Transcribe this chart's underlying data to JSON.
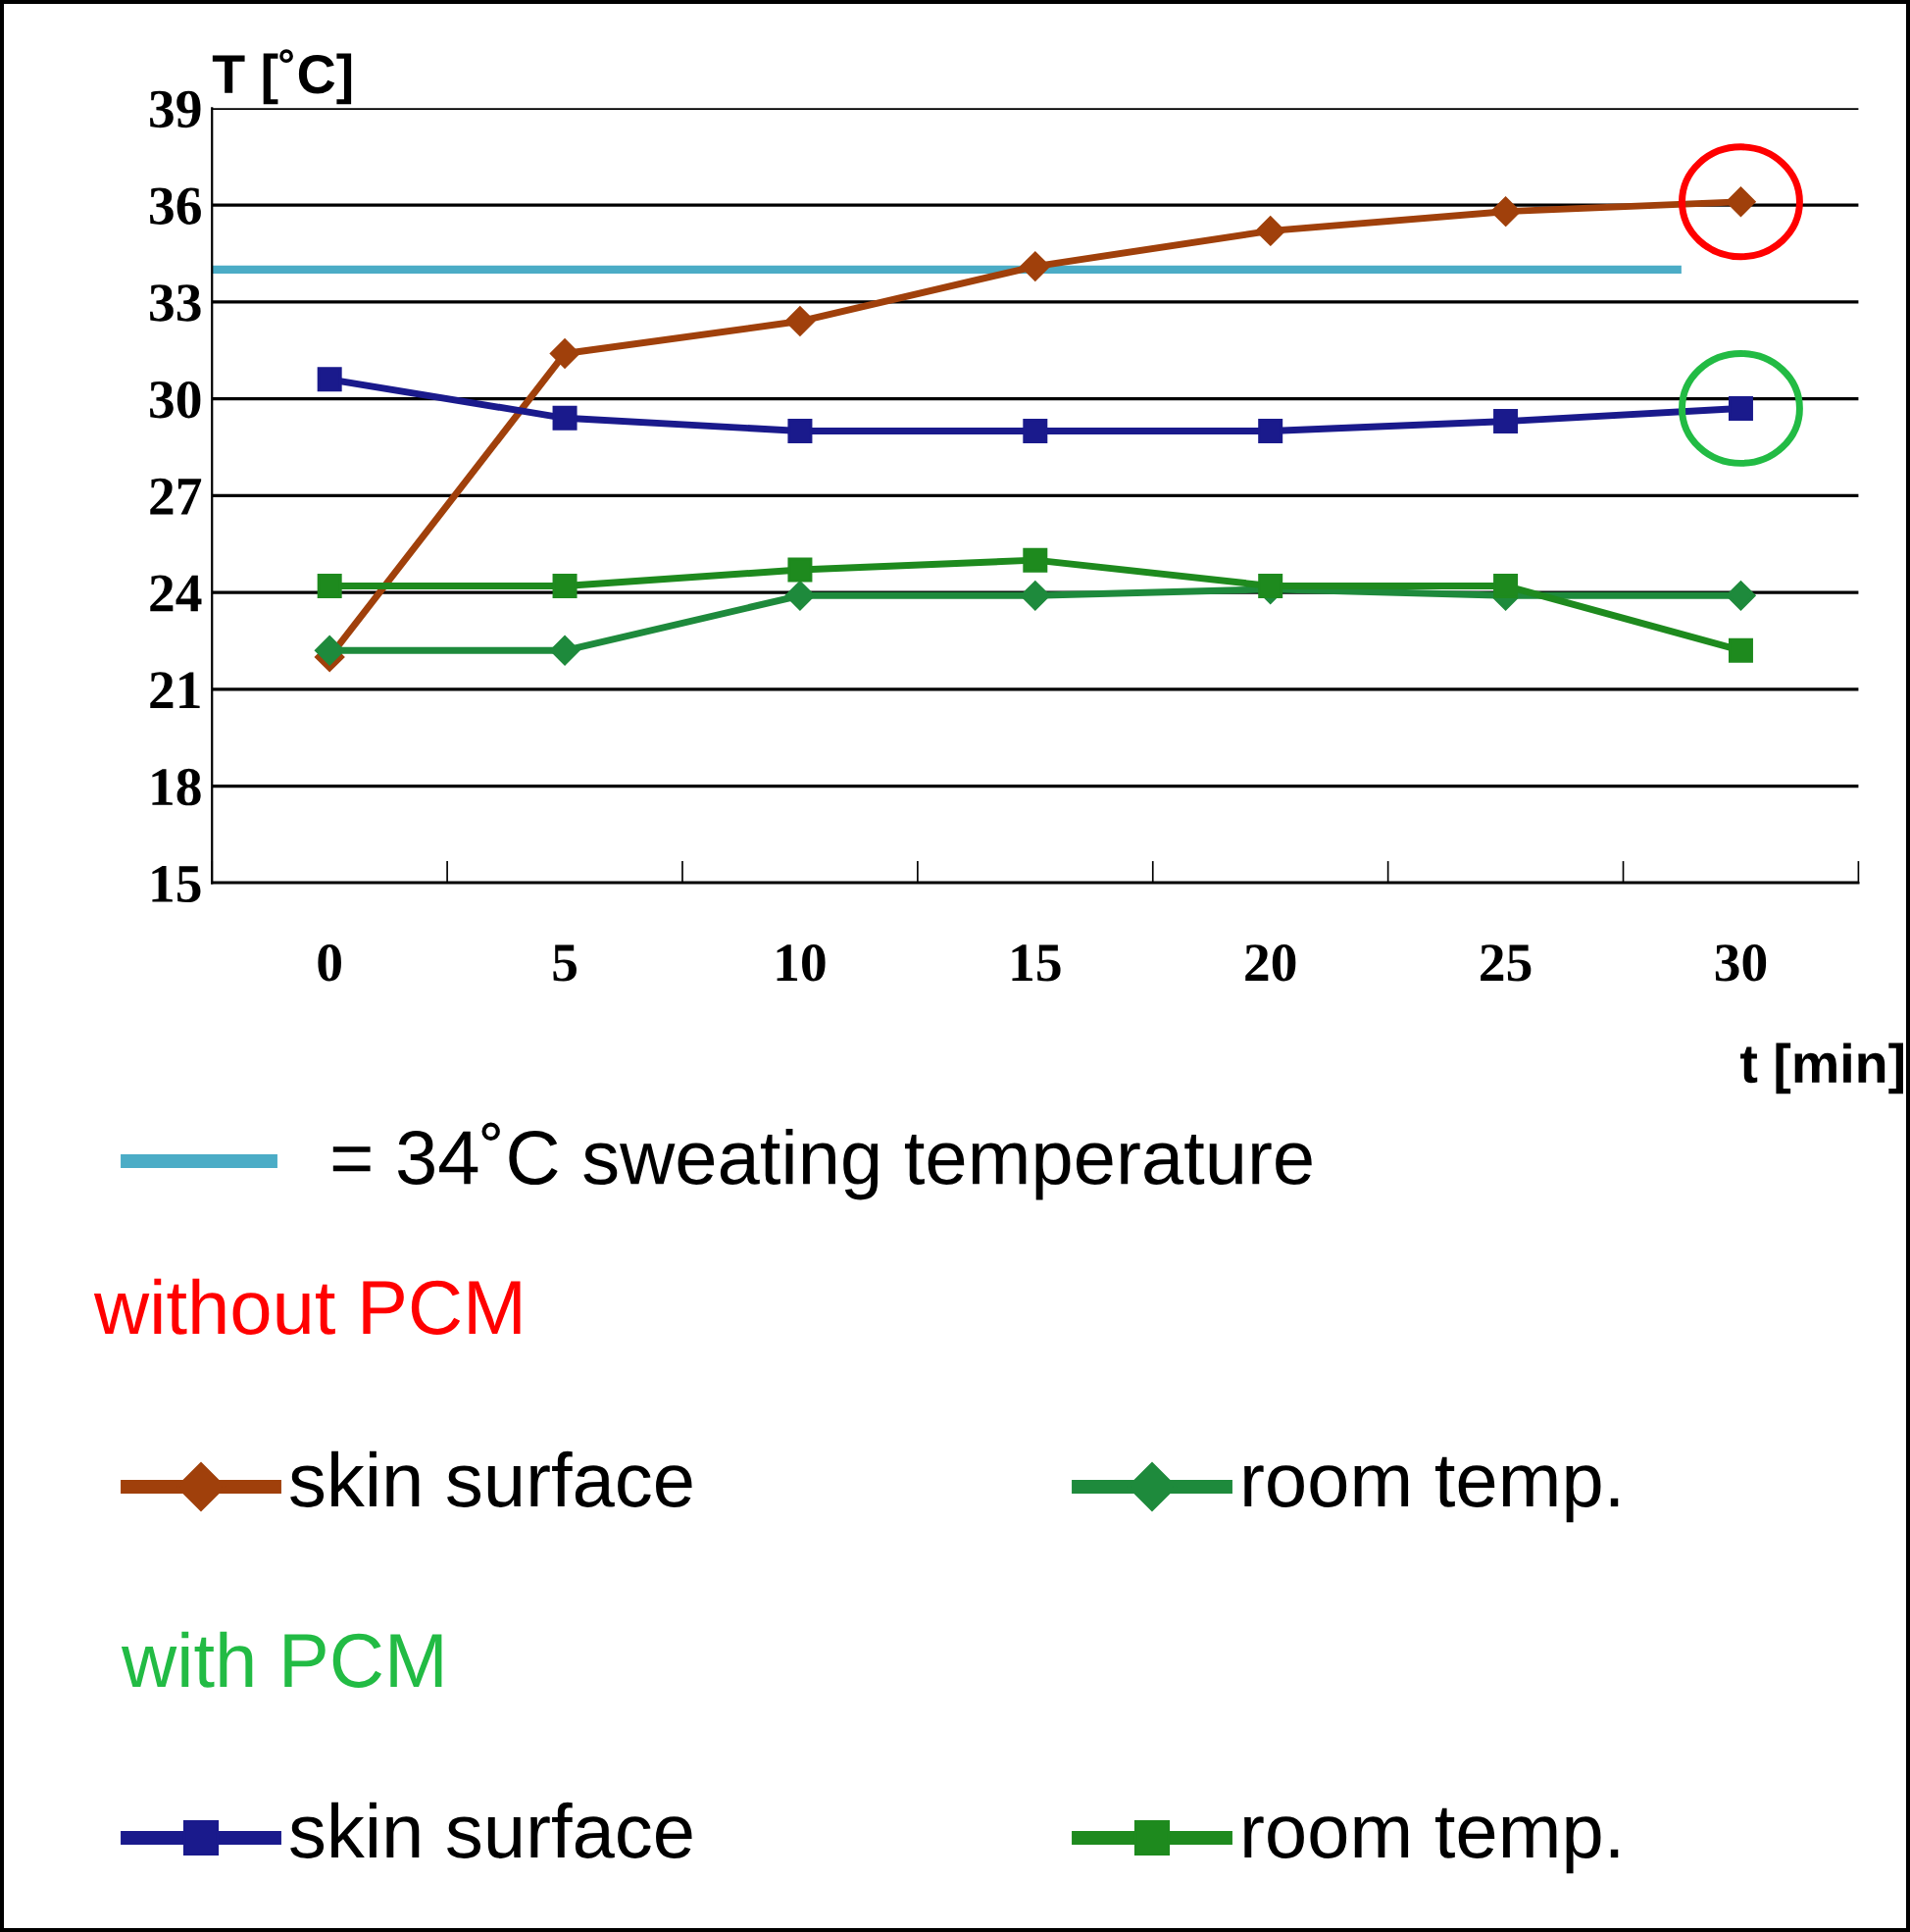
{
  "chart_data": {
    "type": "line",
    "xlabel": "t [min]",
    "ylabel": "T [˚C]",
    "categories": [
      "0",
      "5",
      "10",
      "15",
      "20",
      "25",
      "30"
    ],
    "ylim": [
      15,
      39
    ],
    "yticks": [
      15,
      18,
      21,
      24,
      27,
      30,
      33,
      36,
      39
    ],
    "grid": "y",
    "legend": "bottom",
    "series": [
      {
        "name": "skin surface",
        "color": "#a0400b",
        "marker": "diamond",
        "values": [
          22.0,
          31.4,
          32.4,
          34.1,
          35.2,
          35.8,
          36.1
        ]
      },
      {
        "name": "room temp.",
        "color": "#1e8a3c",
        "marker": "diamond",
        "values": [
          22.2,
          22.2,
          23.9,
          23.9,
          24.1,
          23.9,
          23.9
        ]
      },
      {
        "name": "skin surface",
        "color": "#1a1a8c",
        "marker": "square",
        "values": [
          30.6,
          29.4,
          29.0,
          29.0,
          29.0,
          29.3,
          29.7
        ]
      },
      {
        "name": "room temp.",
        "color": "#1e8a1e",
        "marker": "square",
        "values": [
          24.2,
          24.2,
          24.7,
          25.0,
          24.2,
          24.2,
          22.2
        ]
      }
    ],
    "ref_lines": [
      {
        "axis": "y",
        "value": 34,
        "label": "= 34˚C sweating temperature",
        "color": "#4bacc6"
      }
    ],
    "annotations": [
      "without PCM",
      "with PCM"
    ]
  }
}
